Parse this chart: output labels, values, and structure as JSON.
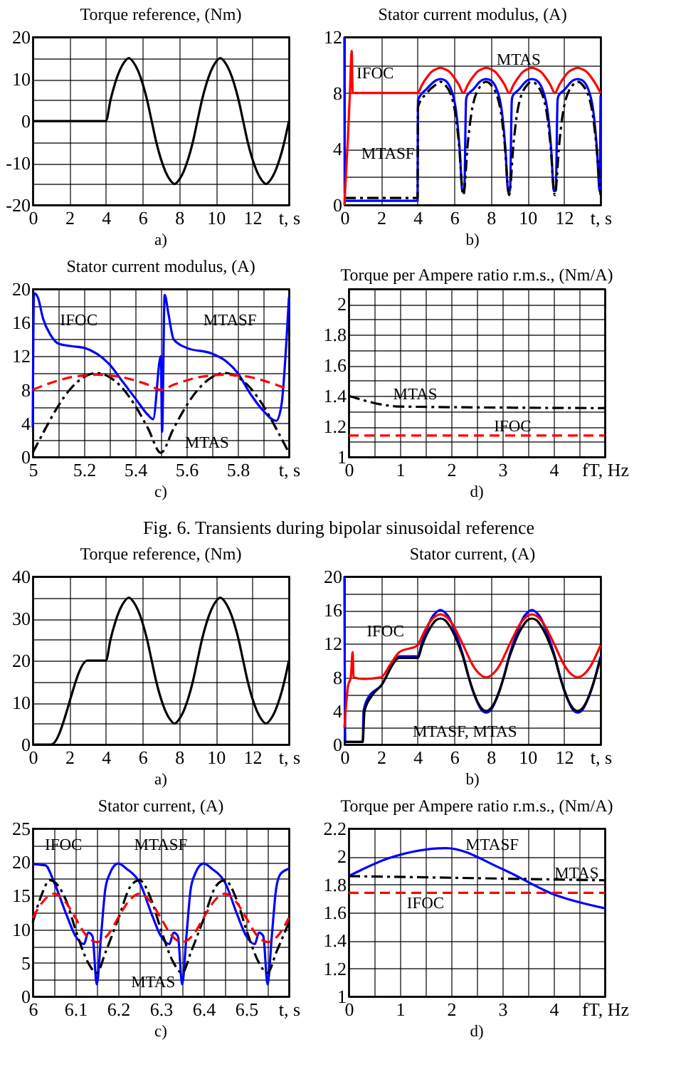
{
  "chart_data": [
    {
      "type": "line",
      "title": "Torque reference, (Nm)",
      "xlabel": "t, s",
      "xlim": [
        0,
        14
      ],
      "xticks": [
        0,
        2,
        4,
        6,
        8,
        10,
        12,
        {
          "value": 14,
          "label": null
        }
      ],
      "ylim": [
        -20,
        20
      ],
      "yticks": [
        -20,
        {
          "value": -15,
          "label": null
        },
        -10,
        {
          "value": -5,
          "label": null
        },
        0,
        {
          "value": 5,
          "label": null
        },
        10,
        {
          "value": 15,
          "label": null
        },
        20
      ],
      "grid": true,
      "annotations": [
        "a)"
      ],
      "series": [
        {
          "color": "#000000",
          "x": [
            0,
            4,
            4.25,
            4.5,
            4.75,
            5,
            5.25,
            5.5,
            5.75,
            6,
            6.25,
            6.5,
            6.75,
            7,
            7.25,
            7.5,
            7.75,
            8,
            8.25,
            8.5,
            8.75,
            9,
            9.25,
            9.5,
            9.75,
            10,
            10.25,
            10.5,
            10.75,
            11,
            11.25,
            11.5,
            11.75,
            12,
            12.25,
            12.5,
            12.75,
            13,
            13.25,
            13.5,
            13.75,
            14
          ],
          "values": [
            0,
            0,
            5,
            9,
            12,
            14,
            15,
            14,
            12,
            9,
            5,
            0,
            -5,
            -9,
            -12,
            -14,
            -15,
            -14,
            -12,
            -9,
            -5,
            0,
            5,
            9,
            12,
            14,
            15,
            14,
            12,
            9,
            5,
            0,
            -5,
            -9,
            -12,
            -14,
            -15,
            -14,
            -12,
            -9,
            -5,
            0
          ]
        }
      ]
    },
    {
      "type": "line",
      "title": "Stator current modulus, (A)",
      "xlabel": "t, s",
      "xlim": [
        0,
        14
      ],
      "xticks": [
        0,
        2,
        4,
        6,
        8,
        10,
        12,
        {
          "value": 14,
          "label": null
        }
      ],
      "ylim": [
        0,
        12
      ],
      "yticks": [
        0,
        {
          "value": 2,
          "label": null
        },
        4,
        {
          "value": 6,
          "label": null
        },
        8,
        {
          "value": 10,
          "label": null
        },
        12
      ],
      "grid": true,
      "annotations": [
        "b)",
        "IFOC",
        "MTAS",
        "MTASF"
      ],
      "series": [
        {
          "color": "#0000ff",
          "x": [
            0,
            0.02,
            4,
            4.02,
            4.5,
            5,
            5.25,
            5.5,
            6,
            6.3,
            6.45,
            6.55,
            6.65,
            6.7,
            7,
            7.5,
            7.75,
            8,
            8.5,
            8.8,
            8.95,
            9.05,
            9.15,
            9.2,
            9.5,
            10,
            10.25,
            10.5,
            11,
            11.3,
            11.45,
            11.55,
            11.65,
            11.7,
            12,
            12.5,
            12.75,
            13,
            13.5,
            13.8,
            13.95,
            14
          ],
          "values": [
            12,
            0.3,
            0.3,
            7.5,
            8.3,
            8.9,
            9,
            8.9,
            7.5,
            4,
            1,
            1,
            7.5,
            7.8,
            8.2,
            8.9,
            9,
            8.9,
            7.5,
            4,
            1,
            1,
            7.5,
            7.8,
            8.2,
            8.9,
            9,
            8.9,
            7.5,
            4,
            1,
            1,
            7.5,
            7.8,
            8.2,
            8.9,
            9,
            8.9,
            7.5,
            4,
            1,
            7.8
          ]
        },
        {
          "color": "#000000",
          "line_style": "dashdot",
          "x": [
            0,
            4,
            4.02,
            4.5,
            5,
            5.25,
            5.5,
            6,
            6.25,
            6.5,
            6.75,
            7,
            7.5,
            7.75,
            8,
            8.5,
            8.75,
            9,
            9.25,
            9.5,
            10,
            10.25,
            10.5,
            11,
            11.25,
            11.5,
            11.75,
            12,
            12.5,
            12.75,
            13,
            13.5,
            13.75,
            14
          ],
          "values": [
            0.5,
            0.5,
            7,
            8,
            8.6,
            8.8,
            8.6,
            7,
            4.5,
            0.7,
            4.5,
            7,
            8.6,
            8.8,
            8.6,
            7,
            4.5,
            0.7,
            4.5,
            7,
            8.6,
            8.8,
            8.6,
            7,
            4.5,
            0.7,
            4.5,
            7,
            8.6,
            8.8,
            8.6,
            7,
            4.5,
            0.7
          ]
        },
        {
          "color": "#ff0000",
          "x": [
            0,
            0.2,
            0.3,
            0.4,
            0.45,
            4,
            4.25,
            4.5,
            4.75,
            5,
            5.25,
            5.5,
            5.75,
            6,
            6.25,
            6.5,
            6.75,
            7,
            7.25,
            7.5,
            7.75,
            8,
            8.25,
            8.5,
            8.75,
            9,
            9.25,
            9.5,
            9.75,
            10,
            10.25,
            10.5,
            10.75,
            11,
            11.25,
            11.5,
            11.75,
            12,
            12.25,
            12.5,
            12.75,
            13,
            13.25,
            13.5,
            13.75,
            14
          ],
          "values": [
            0,
            5,
            8,
            11,
            8,
            8,
            8.6,
            9.1,
            9.5,
            9.7,
            9.8,
            9.7,
            9.5,
            9.1,
            8.6,
            8,
            8.6,
            9.1,
            9.5,
            9.7,
            9.8,
            9.7,
            9.5,
            9.1,
            8.6,
            8,
            8.6,
            9.1,
            9.5,
            9.7,
            9.8,
            9.7,
            9.5,
            9.1,
            8.6,
            8,
            8.6,
            9.1,
            9.5,
            9.7,
            9.8,
            9.7,
            9.5,
            9.1,
            8.6,
            8
          ]
        }
      ]
    },
    {
      "type": "line",
      "title": "Stator current modulus, (A)",
      "xlabel": "t, s",
      "xlim": [
        5,
        6
      ],
      "xticks": [
        5,
        {
          "value": 5.1,
          "label": null
        },
        5.2,
        {
          "value": 5.3,
          "label": null
        },
        5.4,
        {
          "value": 5.5,
          "label": null
        },
        5.6,
        {
          "value": 5.7,
          "label": null
        },
        5.8,
        {
          "value": 5.9,
          "label": null
        },
        {
          "value": 6,
          "label": null
        }
      ],
      "ylim": [
        0,
        20
      ],
      "yticks": [
        0,
        {
          "value": 2,
          "label": null
        },
        4,
        {
          "value": 6,
          "label": null
        },
        8,
        {
          "value": 10,
          "label": null
        },
        12,
        {
          "value": 14,
          "label": null
        },
        16,
        {
          "value": 18,
          "label": null
        },
        20
      ],
      "grid": true,
      "annotations": [
        "c)",
        "IFOC",
        "MTASF",
        "MTAS"
      ],
      "series": [
        {
          "color": "#0000ff",
          "x": [
            5,
            5.005,
            5.02,
            5.04,
            5.07,
            5.1,
            5.15,
            5.2,
            5.25,
            5.3,
            5.35,
            5.4,
            5.45,
            5.47,
            5.5,
            5.505,
            5.515,
            5.53,
            5.55,
            5.6,
            5.7,
            5.75,
            5.8,
            5.85,
            5.9,
            5.95,
            5.97,
            6
          ],
          "values": [
            3.5,
            19.5,
            19,
            16.5,
            14.5,
            13.5,
            13.2,
            13,
            12.3,
            11,
            9,
            7,
            5,
            4.5,
            12,
            3,
            19.3,
            17,
            14,
            13,
            12.3,
            11.5,
            10,
            7.5,
            5.5,
            4.3,
            6,
            19
          ]
        },
        {
          "color": "#000000",
          "line_style": "dashdot",
          "x": [
            5,
            5.05,
            5.1,
            5.15,
            5.2,
            5.25,
            5.3,
            5.35,
            5.4,
            5.45,
            5.5,
            5.55,
            5.6,
            5.65,
            5.7,
            5.75,
            5.8,
            5.85,
            5.9,
            5.95,
            6
          ],
          "values": [
            0.5,
            3.4,
            6.1,
            8.2,
            9.5,
            10,
            9.5,
            8.2,
            6.1,
            3.4,
            0.5,
            3.4,
            6.1,
            8.2,
            9.5,
            10,
            9.5,
            8.2,
            6.1,
            3.4,
            0.5
          ]
        },
        {
          "color": "#ff0000",
          "line_style": "dashed",
          "x": [
            5,
            5.05,
            5.1,
            5.15,
            5.2,
            5.25,
            5.3,
            5.35,
            5.4,
            5.45,
            5.5,
            5.55,
            5.6,
            5.65,
            5.7,
            5.75,
            5.8,
            5.85,
            5.9,
            5.95,
            6
          ],
          "values": [
            8,
            8.6,
            9.1,
            9.5,
            9.7,
            9.8,
            9.7,
            9.5,
            9.1,
            8.6,
            8,
            8.6,
            9.1,
            9.5,
            9.7,
            9.8,
            9.7,
            9.5,
            9.1,
            8.6,
            8
          ]
        }
      ]
    },
    {
      "type": "line",
      "title": "Torque per Ampere ratio r.m.s., (Nm/A)",
      "xlabel": "fT, Hz",
      "xlim": [
        0,
        5
      ],
      "xticks": [
        0,
        {
          "value": 0.5,
          "label": null
        },
        1,
        {
          "value": 1.5,
          "label": null
        },
        2,
        {
          "value": 2.5,
          "label": null
        },
        3,
        {
          "value": 3.5,
          "label": null
        },
        4,
        {
          "value": 4.5,
          "label": null
        },
        {
          "value": 5,
          "label": null
        }
      ],
      "ylim": [
        1,
        2.1
      ],
      "yticks": [
        1,
        {
          "value": 1.1,
          "label": null
        },
        1.2,
        {
          "value": 1.3,
          "label": null
        },
        1.4,
        {
          "value": 1.5,
          "label": null
        },
        1.6,
        {
          "value": 1.7,
          "label": null
        },
        1.8,
        {
          "value": 1.9,
          "label": null
        },
        2
      ],
      "grid": true,
      "annotations": [
        "d)",
        "MTAS",
        "IFOC"
      ],
      "series": [
        {
          "color": "#000000",
          "line_style": "dashdot",
          "x": [
            0,
            0.1,
            0.7,
            1,
            5
          ],
          "values": [
            1.4,
            1.39,
            1.34,
            1.33,
            1.32
          ]
        },
        {
          "color": "#ff0000",
          "line_style": "dashed",
          "x": [
            0,
            5
          ],
          "values": [
            1.14,
            1.14
          ]
        }
      ]
    },
    {
      "type": "other",
      "annotations": [
        "Fig. 6. Transients during bipolar sinusoidal reference"
      ]
    },
    {
      "type": "line",
      "title": "Torque reference, (Nm)",
      "xlabel": "t, s",
      "xlim": [
        0,
        14
      ],
      "xticks": [
        0,
        2,
        4,
        6,
        8,
        10,
        12,
        {
          "value": 14,
          "label": null
        }
      ],
      "ylim": [
        0,
        40
      ],
      "yticks": [
        0,
        {
          "value": 5,
          "label": null
        },
        10,
        {
          "value": 15,
          "label": null
        },
        20,
        {
          "value": 25,
          "label": null
        },
        30,
        {
          "value": 35,
          "label": null
        },
        40
      ],
      "grid": true,
      "annotations": [
        "a)"
      ],
      "series": [
        {
          "color": "#000000",
          "x": [
            0,
            1,
            3,
            4,
            4.25,
            4.5,
            4.75,
            5,
            5.25,
            5.5,
            5.75,
            6,
            6.25,
            6.5,
            6.75,
            7,
            7.25,
            7.5,
            7.75,
            8,
            8.25,
            8.5,
            8.75,
            9,
            9.25,
            9.5,
            9.75,
            10,
            10.25,
            10.5,
            10.75,
            11,
            11.25,
            11.5,
            11.75,
            12,
            12.25,
            12.5,
            12.75,
            13,
            13.25,
            13.5,
            13.75,
            14
          ],
          "values": [
            0,
            0,
            20,
            20,
            25,
            29,
            32,
            34,
            35,
            34,
            32,
            29,
            25,
            20,
            15,
            11,
            8,
            6,
            5,
            6,
            8,
            11,
            15,
            20,
            25,
            29,
            32,
            34,
            35,
            34,
            32,
            29,
            25,
            20,
            15,
            11,
            8,
            6,
            5,
            6,
            8,
            11,
            15,
            20
          ]
        }
      ]
    },
    {
      "type": "line",
      "title": "Stator current, (A)",
      "xlabel": "t, s",
      "xlim": [
        0,
        14
      ],
      "xticks": [
        0,
        2,
        4,
        6,
        8,
        10,
        12,
        {
          "value": 14,
          "label": null
        }
      ],
      "ylim": [
        0,
        20
      ],
      "yticks": [
        0,
        {
          "value": 2,
          "label": null
        },
        4,
        {
          "value": 6,
          "label": null
        },
        8,
        {
          "value": 10,
          "label": null
        },
        12,
        {
          "value": 14,
          "label": null
        },
        16,
        {
          "value": 18,
          "label": null
        },
        20
      ],
      "grid": true,
      "annotations": [
        "b)",
        "IFOC",
        "MTASF, MTAS"
      ],
      "series": [
        {
          "color": "#0000ff",
          "x": [
            0,
            0.05,
            1,
            1.05,
            1.3,
            2,
            3,
            4,
            4.25,
            4.5,
            4.75,
            5,
            5.25,
            5.5,
            5.75,
            6,
            6.25,
            6.5,
            6.75,
            7,
            7.25,
            7.5,
            7.75,
            8,
            8.25,
            8.5,
            8.75,
            9,
            9.25,
            9.5,
            9.75,
            10,
            10.25,
            10.5,
            10.75,
            11,
            11.25,
            11.5,
            11.75,
            12,
            12.25,
            12.5,
            12.75,
            13,
            13.25,
            13.5,
            13.75,
            14
          ],
          "values": [
            20,
            0.3,
            0.3,
            4,
            5.6,
            7,
            10.5,
            10.5,
            12.2,
            13.7,
            15,
            15.7,
            16,
            15.7,
            15,
            13.7,
            12.2,
            10.5,
            8.4,
            6.5,
            5.1,
            4.1,
            3.8,
            4.1,
            5.1,
            6.5,
            8.4,
            10.5,
            12.2,
            13.7,
            15,
            15.7,
            16,
            15.7,
            15,
            13.7,
            12.2,
            10.5,
            8.4,
            6.5,
            5.1,
            4.1,
            3.8,
            4.1,
            5.1,
            6.5,
            8.4,
            10.5
          ]
        },
        {
          "color": "#000000",
          "x": [
            0,
            1,
            1.1,
            1.5,
            2,
            3,
            4,
            4.25,
            4.5,
            4.75,
            5,
            5.25,
            5.5,
            5.75,
            6,
            6.25,
            6.5,
            6.75,
            7,
            7.25,
            7.5,
            7.75,
            8,
            8.25,
            8.5,
            8.75,
            9,
            9.25,
            9.5,
            9.75,
            10,
            10.25,
            10.5,
            10.75,
            11,
            11.25,
            11.5,
            11.75,
            12,
            12.25,
            12.5,
            12.75,
            13,
            13.25,
            13.5,
            13.75,
            14
          ],
          "values": [
            0.3,
            0.3,
            4,
            5.8,
            7,
            10.3,
            10.3,
            11.8,
            13.1,
            14.1,
            14.8,
            15,
            14.8,
            14.1,
            13.1,
            11.8,
            10.3,
            8.3,
            6.6,
            5.2,
            4.3,
            4,
            4.3,
            5.2,
            6.6,
            8.3,
            10.3,
            11.8,
            13.1,
            14.1,
            14.8,
            15,
            14.8,
            14.1,
            13.1,
            11.8,
            10.3,
            8.3,
            6.6,
            5.2,
            4.3,
            4,
            4.3,
            5.2,
            6.6,
            8.3,
            10.3
          ]
        },
        {
          "color": "#ff0000",
          "x": [
            0,
            0.2,
            0.35,
            0.45,
            0.5,
            1,
            2,
            2.5,
            3,
            4,
            4.25,
            4.5,
            4.75,
            5,
            5.25,
            5.5,
            5.75,
            6,
            6.25,
            6.5,
            6.75,
            7,
            7.25,
            7.5,
            7.75,
            8,
            8.25,
            8.5,
            8.75,
            9,
            9.25,
            9.5,
            9.75,
            10,
            10.25,
            10.5,
            10.75,
            11,
            11.25,
            11.5,
            11.75,
            12,
            12.25,
            12.5,
            12.75,
            13,
            13.25,
            13.5,
            13.75,
            14
          ],
          "values": [
            2,
            7,
            8,
            11,
            8,
            7.8,
            8,
            9.5,
            11,
            11.8,
            12.9,
            14,
            14.8,
            15.3,
            15.5,
            15.3,
            14.8,
            14,
            12.9,
            11.8,
            10.6,
            9.5,
            8.7,
            8.2,
            8,
            8.2,
            8.7,
            9.5,
            10.6,
            11.8,
            12.9,
            14,
            14.8,
            15.3,
            15.5,
            15.3,
            14.8,
            14,
            12.9,
            11.8,
            10.6,
            9.5,
            8.7,
            8.2,
            8,
            8.2,
            8.7,
            9.5,
            10.6,
            11.8
          ]
        }
      ]
    },
    {
      "type": "line",
      "title": "Stator current, (A)",
      "xlabel": "t, s",
      "xlim": [
        6,
        6.6
      ],
      "xticks": [
        6,
        {
          "value": 6.05,
          "label": null
        },
        6.1,
        {
          "value": 6.15,
          "label": null
        },
        6.2,
        {
          "value": 6.25,
          "label": null
        },
        6.3,
        {
          "value": 6.35,
          "label": null
        },
        6.4,
        {
          "value": 6.45,
          "label": null
        },
        6.5,
        {
          "value": 6.55,
          "label": null
        },
        {
          "value": 6.6,
          "label": null
        }
      ],
      "ylim": [
        0,
        25
      ],
      "yticks": [
        0,
        {
          "value": 2.5,
          "label": null
        },
        5,
        {
          "value": 7.5,
          "label": null
        },
        10,
        {
          "value": 12.5,
          "label": null
        },
        15,
        {
          "value": 17.5,
          "label": null
        },
        20,
        {
          "value": 22.5,
          "label": null
        },
        25
      ],
      "grid": true,
      "annotations": [
        "c)",
        "IFOC",
        "MTASF",
        "MTAS"
      ],
      "series": [
        {
          "color": "#0000ff",
          "x": [
            6,
            6.03,
            6.05,
            6.08,
            6.1,
            6.12,
            6.13,
            6.14,
            6.15,
            6.16,
            6.17,
            6.18,
            6.2,
            6.22,
            6.25,
            6.28,
            6.3,
            6.32,
            6.33,
            6.34,
            6.35,
            6.36,
            6.37,
            6.38,
            6.4,
            6.42,
            6.45,
            6.48,
            6.5,
            6.52,
            6.53,
            6.54,
            6.55,
            6.56,
            6.57,
            6.58,
            6.6
          ],
          "values": [
            19.7,
            19.5,
            17,
            12,
            9,
            7.8,
            9.5,
            9,
            1.8,
            9,
            16,
            18.2,
            19.8,
            19,
            17,
            12,
            9,
            7.8,
            9.5,
            9,
            1.8,
            9,
            16,
            18.2,
            19.8,
            19,
            17,
            12,
            9,
            7.8,
            9.5,
            9,
            1.8,
            9,
            16,
            18.2,
            19
          ]
        },
        {
          "color": "#000000",
          "line_style": "dashdot",
          "x": [
            6,
            6.02,
            6.04,
            6.08,
            6.1,
            6.13,
            6.15,
            6.17,
            6.2,
            6.23,
            6.25,
            6.28,
            6.3,
            6.33,
            6.35,
            6.37,
            6.4,
            6.43,
            6.45,
            6.48,
            6.5,
            6.53,
            6.55,
            6.57,
            6.6
          ],
          "values": [
            11,
            15,
            17.3,
            14,
            10,
            5,
            3.5,
            6.5,
            11.5,
            16.5,
            17.3,
            14,
            10,
            5,
            3.5,
            6.5,
            11.5,
            16.5,
            17.3,
            14,
            10,
            5,
            3.5,
            6.5,
            11
          ]
        },
        {
          "color": "#ff0000",
          "line_style": "dashed",
          "x": [
            6,
            6.025,
            6.05,
            6.075,
            6.1,
            6.125,
            6.15,
            6.175,
            6.2,
            6.225,
            6.25,
            6.275,
            6.3,
            6.325,
            6.35,
            6.375,
            6.4,
            6.425,
            6.45,
            6.475,
            6.5,
            6.525,
            6.55,
            6.575,
            6.6
          ],
          "values": [
            11.7,
            14.2,
            15.3,
            14.2,
            11.7,
            9.1,
            8.1,
            9.1,
            11.7,
            14.2,
            15.3,
            14.2,
            11.7,
            9.1,
            8.1,
            9.1,
            11.7,
            14.2,
            15.3,
            14.2,
            11.7,
            9.1,
            8.1,
            9.1,
            11.7
          ]
        }
      ]
    },
    {
      "type": "line",
      "title": "Torque per Ampere ratio r.m.s., (Nm/A)",
      "xlabel": "fT, Hz",
      "xlim": [
        0,
        5
      ],
      "xticks": [
        0,
        {
          "value": 0.5,
          "label": null
        },
        1,
        {
          "value": 1.5,
          "label": null
        },
        2,
        {
          "value": 2.5,
          "label": null
        },
        3,
        {
          "value": 3.5,
          "label": null
        },
        4,
        {
          "value": 4.5,
          "label": null
        },
        {
          "value": 5,
          "label": null
        }
      ],
      "ylim": [
        1,
        2.2
      ],
      "yticks": [
        1,
        1.2,
        1.4,
        1.6,
        1.8,
        2,
        2.2
      ],
      "grid": true,
      "annotations": [
        "d)",
        "MTASF",
        "MTAS",
        "IFOC"
      ],
      "series": [
        {
          "color": "#0000ff",
          "x": [
            0,
            0.8,
            1.9,
            3,
            4,
            5
          ],
          "values": [
            1.86,
            1.99,
            2.06,
            1.91,
            1.73,
            1.63
          ]
        },
        {
          "color": "#000000",
          "line_style": "dashdot",
          "x": [
            0,
            5
          ],
          "values": [
            1.86,
            1.83
          ]
        },
        {
          "color": "#ff0000",
          "line_style": "dashed",
          "x": [
            0,
            5
          ],
          "values": [
            1.74,
            1.74
          ]
        }
      ]
    }
  ]
}
